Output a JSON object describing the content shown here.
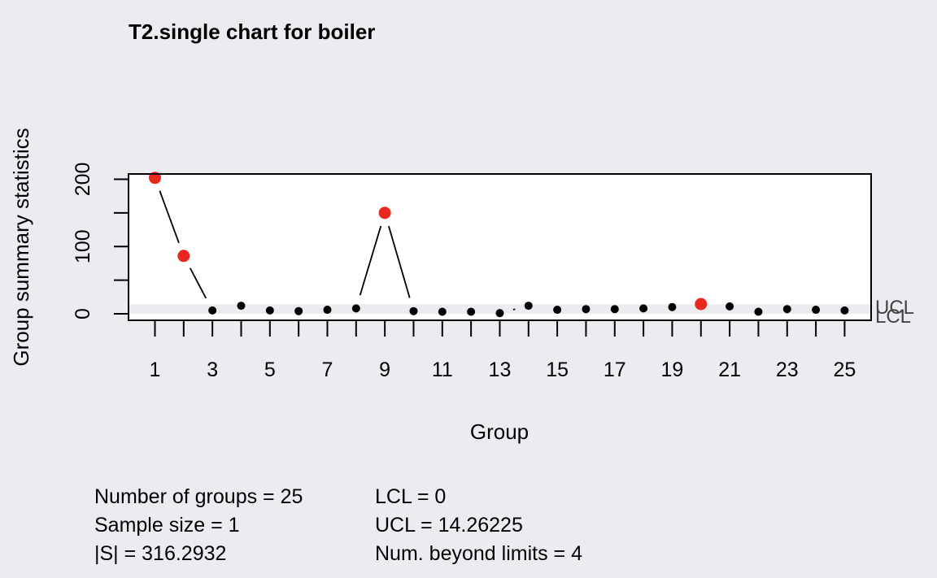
{
  "chart_data": {
    "type": "scatter",
    "title": "T2.single chart for boiler",
    "xlabel": "Group",
    "ylabel": "Group summary statistics",
    "x": [
      1,
      2,
      3,
      4,
      5,
      6,
      7,
      8,
      9,
      10,
      11,
      12,
      13,
      14,
      15,
      16,
      17,
      18,
      19,
      20,
      21,
      22,
      23,
      24,
      25
    ],
    "values": [
      202,
      86,
      5,
      12,
      5,
      4,
      6,
      8,
      150,
      4,
      3,
      3,
      1,
      12,
      6,
      7,
      7,
      8,
      10,
      14.5,
      11,
      3,
      7,
      6,
      5
    ],
    "beyond_limits": [
      1,
      2,
      9,
      20
    ],
    "x_tick_labels": [
      "1",
      "3",
      "5",
      "7",
      "9",
      "11",
      "13",
      "15",
      "17",
      "19",
      "21",
      "23",
      "25"
    ],
    "y_tick_labels": [
      "0",
      "100",
      "200"
    ],
    "ylim": [
      -8,
      210
    ],
    "ucl": 14.26225,
    "lcl": 0,
    "ucl_label": "UCL",
    "lcl_label": "LCL",
    "colors": {
      "in_control": "#000000",
      "beyond": "#e8281e",
      "band": "#ebecf0",
      "panel": "#ffffff"
    }
  },
  "stats": {
    "groups": "Number of groups = 25",
    "sample_size": "Sample size = 1",
    "det_s": "|S| = 316.2932",
    "lcl": "LCL = 0",
    "ucl": "UCL = 14.26225",
    "beyond": "Num. beyond limits = 4"
  }
}
